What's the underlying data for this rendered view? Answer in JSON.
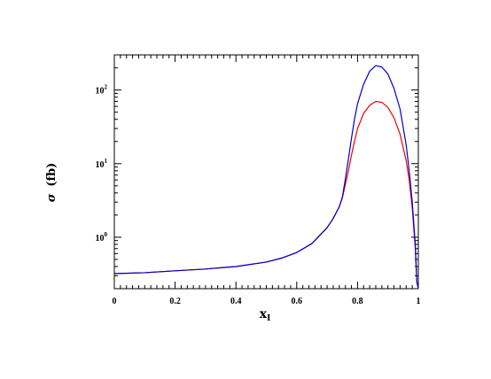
{
  "chart_data": {
    "type": "line",
    "xlabel": "x",
    "xlabel_sub": "I",
    "ylabel": "σ  (fb)",
    "ylabel_symbol": "σ",
    "ylabel_unit": "(fb)",
    "xlim": [
      0,
      1
    ],
    "ylim": [
      0.2,
      300
    ],
    "yscale": "log",
    "grid": false,
    "x_ticks": [
      {
        "value": 0,
        "label": "0"
      },
      {
        "value": 0.2,
        "label": "0.2"
      },
      {
        "value": 0.4,
        "label": "0.4"
      },
      {
        "value": 0.6,
        "label": "0.6"
      },
      {
        "value": 0.8,
        "label": "0.8"
      },
      {
        "value": 1,
        "label": "1"
      }
    ],
    "y_ticks": [
      {
        "value": 1,
        "base": "10",
        "exp": "0"
      },
      {
        "value": 10,
        "base": "10",
        "exp": "1"
      },
      {
        "value": 100,
        "base": "10",
        "exp": "2"
      }
    ],
    "series": [
      {
        "color": "#ee0000",
        "x": [
          0.0,
          0.1,
          0.2,
          0.3,
          0.4,
          0.5,
          0.55,
          0.6,
          0.65,
          0.7,
          0.72,
          0.74,
          0.75,
          0.76,
          0.77,
          0.78,
          0.79,
          0.8,
          0.82,
          0.84,
          0.86,
          0.88,
          0.9,
          0.92,
          0.94,
          0.96,
          0.97,
          0.98,
          0.99,
          0.995
        ],
        "y": [
          0.32,
          0.33,
          0.35,
          0.37,
          0.4,
          0.46,
          0.52,
          0.62,
          0.82,
          1.35,
          1.8,
          2.6,
          3.4,
          5.2,
          8.0,
          13.0,
          20.0,
          30.0,
          48.0,
          62.0,
          70.0,
          68.0,
          58.0,
          42.0,
          25.0,
          11.0,
          6.0,
          2.5,
          0.7,
          0.25
        ]
      },
      {
        "color": "#0000cc",
        "x": [
          0.0,
          0.1,
          0.2,
          0.3,
          0.4,
          0.5,
          0.55,
          0.6,
          0.65,
          0.7,
          0.72,
          0.74,
          0.75,
          0.76,
          0.77,
          0.78,
          0.79,
          0.8,
          0.82,
          0.84,
          0.86,
          0.88,
          0.9,
          0.92,
          0.94,
          0.96,
          0.97,
          0.98,
          0.99,
          0.995
        ],
        "y": [
          0.32,
          0.33,
          0.35,
          0.37,
          0.4,
          0.46,
          0.52,
          0.62,
          0.82,
          1.35,
          1.8,
          2.6,
          3.5,
          6.2,
          11.5,
          22.0,
          40.0,
          65.0,
          120.0,
          180.0,
          215.0,
          205.0,
          165.0,
          105.0,
          55.0,
          18.0,
          8.0,
          3.0,
          0.8,
          0.25
        ]
      }
    ]
  }
}
